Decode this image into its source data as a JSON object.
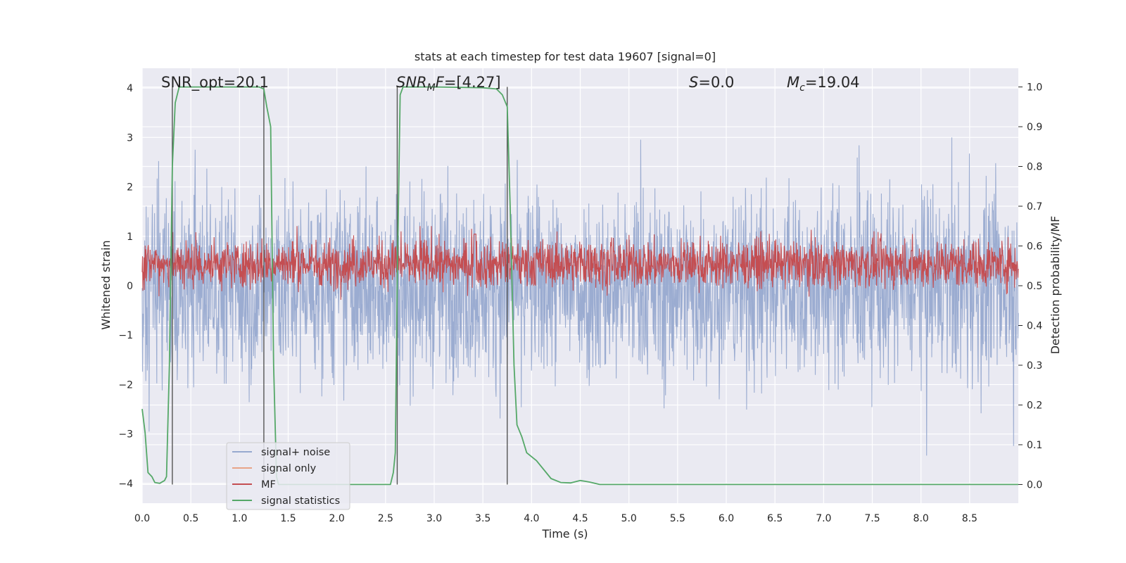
{
  "chart_data": {
    "type": "line",
    "title": "stats at each timestep for test data 19607 [signal=0]",
    "xlabel": "Time (s)",
    "ylabel": "Whitened strain",
    "y2label": "Detection probability/MF",
    "xlim": [
      0.0,
      9.0
    ],
    "ylim": [
      -4.4,
      4.4
    ],
    "y2lim": [
      -0.047,
      1.047
    ],
    "xticks": [
      "0.0",
      "0.5",
      "1.0",
      "1.5",
      "2.0",
      "2.5",
      "3.0",
      "3.5",
      "4.0",
      "4.5",
      "5.0",
      "5.5",
      "6.0",
      "6.5",
      "7.0",
      "7.5",
      "8.0",
      "8.5"
    ],
    "yticks": [
      "−4",
      "−3",
      "−2",
      "−1",
      "0",
      "1",
      "2",
      "3",
      "4"
    ],
    "y2ticks": [
      "0.0",
      "0.1",
      "0.2",
      "0.3",
      "0.4",
      "0.5",
      "0.6",
      "0.7",
      "0.8",
      "0.9",
      "1.0"
    ],
    "grid": true,
    "legend_position": "lower-left",
    "annotations": [
      {
        "id": "snr_opt",
        "text": "SNR_opt=20.1",
        "x": 0.2
      },
      {
        "id": "snr_mf",
        "text": "=[4.27]",
        "x": 2.6,
        "base": "SNR",
        "sub": "M",
        "suffix": "F"
      },
      {
        "id": "s",
        "text": "=0.0",
        "x": 5.6,
        "base": "S"
      },
      {
        "id": "mc",
        "text": "=19.04",
        "x": 6.6,
        "base": "M",
        "sub": "c"
      }
    ],
    "vlines": [
      0.31,
      1.25,
      2.62,
      3.75
    ],
    "series": [
      {
        "name": "signal+ noise",
        "color": "#97a9cf",
        "kind": "noise",
        "amplitude_envelope": [
          -4.0,
          4.0
        ]
      },
      {
        "name": "signal only",
        "color": "#e8a488",
        "values": []
      },
      {
        "name": "MF",
        "color": "#c44e52",
        "kind": "mf",
        "range": [
          0.0,
          1.0
        ],
        "baseline": 0.3
      },
      {
        "name": "signal statistics",
        "color": "#55a868",
        "axis": "right",
        "x": [
          0.0,
          0.03,
          0.06,
          0.1,
          0.13,
          0.18,
          0.23,
          0.25,
          0.28,
          0.31,
          0.34,
          0.37,
          0.38,
          0.4,
          0.5,
          0.7,
          0.9,
          1.1,
          1.2,
          1.25,
          1.28,
          1.32,
          1.35,
          1.38,
          1.4,
          1.5,
          2.0,
          2.4,
          2.55,
          2.58,
          2.6,
          2.62,
          2.65,
          2.68,
          2.7,
          3.0,
          3.5,
          3.64,
          3.7,
          3.75,
          3.78,
          3.82,
          3.85,
          3.9,
          3.95,
          4.05,
          4.15,
          4.2,
          4.3,
          4.4,
          4.5,
          4.55,
          4.6,
          4.7,
          5.0,
          6.0,
          7.0,
          8.0,
          9.0
        ],
        "values": [
          0.19,
          0.13,
          0.03,
          0.02,
          0.005,
          0.003,
          0.01,
          0.02,
          0.3,
          0.8,
          0.96,
          0.99,
          1.0,
          1.0,
          1.0,
          1.0,
          1.0,
          1.0,
          1.0,
          0.995,
          0.95,
          0.9,
          0.3,
          0.02,
          0.0,
          0.0,
          0.0,
          0.0,
          0.0,
          0.03,
          0.08,
          0.5,
          0.98,
          1.0,
          1.0,
          1.0,
          0.998,
          0.995,
          0.98,
          0.95,
          0.7,
          0.3,
          0.15,
          0.12,
          0.08,
          0.06,
          0.03,
          0.015,
          0.005,
          0.004,
          0.01,
          0.008,
          0.006,
          0.0,
          0.0,
          0.0,
          0.0,
          0.0,
          0.0
        ]
      }
    ]
  }
}
